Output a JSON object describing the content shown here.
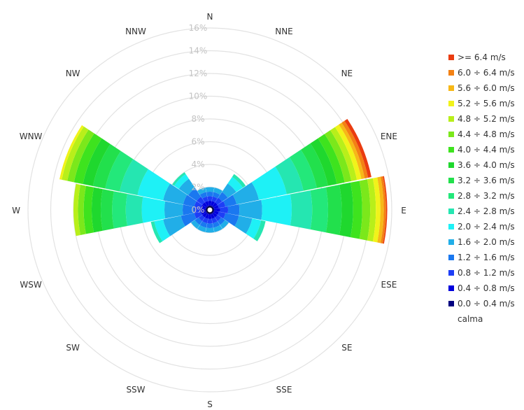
{
  "chart_data": {
    "type": "polar-bar",
    "directions": [
      "N",
      "NNE",
      "NE",
      "ENE",
      "E",
      "ESE",
      "SE",
      "SSE",
      "S",
      "SSW",
      "SW",
      "WSW",
      "W",
      "WNW",
      "NW",
      "NNW"
    ],
    "ring_labels": [
      "0%",
      "2%",
      "4%",
      "6%",
      "8%",
      "10%",
      "12%",
      "14%",
      "16%"
    ],
    "rlim": [
      0,
      16
    ],
    "totals": [
      2.0,
      2.0,
      3.8,
      14.5,
      15.6,
      5.0,
      2.0,
      2.0,
      2.0,
      2.0,
      2.0,
      5.3,
      12.0,
      13.5,
      4.0,
      2.0
    ],
    "legend_position": "right",
    "speed_classes": [
      {
        "label": "0.0 ÷ 0.4 m/s",
        "color": "#000080"
      },
      {
        "label": "0.4 ÷ 0.8 m/s",
        "color": "#0000dd"
      },
      {
        "label": "0.8 ÷ 1.2 m/s",
        "color": "#1e3ef6"
      },
      {
        "label": "1.2 ÷ 1.6 m/s",
        "color": "#1a78f0"
      },
      {
        "label": "1.6 ÷ 2.0 m/s",
        "color": "#21aee8"
      },
      {
        "label": "2.0 ÷ 2.4 m/s",
        "color": "#1ef1f6"
      },
      {
        "label": "2.4 ÷ 2.8 m/s",
        "color": "#25e6b1"
      },
      {
        "label": "2.8 ÷ 3.2 m/s",
        "color": "#23e87a"
      },
      {
        "label": "3.2 ÷ 3.6 m/s",
        "color": "#22e04c"
      },
      {
        "label": "3.6 ÷ 4.0 m/s",
        "color": "#1fd82e"
      },
      {
        "label": "4.0 ÷ 4.4 m/s",
        "color": "#3ee31e"
      },
      {
        "label": "4.4 ÷ 4.8 m/s",
        "color": "#7be81b"
      },
      {
        "label": "4.8 ÷ 5.2 m/s",
        "color": "#b8ef1a"
      },
      {
        "label": "5.2 ÷ 5.6 m/s",
        "color": "#f1f31a"
      },
      {
        "label": "5.6 ÷ 6.0 m/s",
        "color": "#f7b817"
      },
      {
        "label": "6.0 ÷ 6.4 m/s",
        "color": "#f38114"
      },
      {
        "label": ">= 6.4 m/s",
        "color": "#ea3c10"
      },
      {
        "label": "calma",
        "color": ""
      }
    ],
    "petals": [
      {
        "dir": "N",
        "bands": [
          0.4,
          0.4,
          0.4,
          0.4,
          0.4
        ]
      },
      {
        "dir": "NNE",
        "bands": [
          0.4,
          0.4,
          0.4,
          0.4,
          0.4
        ]
      },
      {
        "dir": "NE",
        "bands": [
          0.4,
          0.4,
          0.5,
          0.6,
          0.9,
          0.7,
          0.3
        ]
      },
      {
        "dir": "ENE",
        "bands": [
          0.4,
          0.4,
          0.6,
          1.0,
          2.0,
          2.5,
          1.5,
          1.2,
          1.0,
          0.8,
          0.7,
          0.6,
          0.5,
          0.4,
          0.3,
          0.3,
          0.3
        ]
      },
      {
        "dir": "E",
        "bands": [
          0.4,
          0.5,
          0.7,
          1.0,
          2.0,
          2.6,
          1.8,
          1.4,
          1.2,
          1.0,
          0.8,
          0.7,
          0.5,
          0.4,
          0.3,
          0.2,
          0.1
        ]
      },
      {
        "dir": "ESE",
        "bands": [
          0.4,
          0.4,
          0.6,
          1.2,
          1.2,
          0.8,
          0.4
        ]
      },
      {
        "dir": "SE",
        "bands": [
          0.4,
          0.4,
          0.4,
          0.4,
          0.4
        ]
      },
      {
        "dir": "SSE",
        "bands": [
          0.4,
          0.4,
          0.4,
          0.4,
          0.4
        ]
      },
      {
        "dir": "S",
        "bands": [
          0.4,
          0.4,
          0.4,
          0.4,
          0.4
        ]
      },
      {
        "dir": "SSW",
        "bands": [
          0.4,
          0.4,
          0.4,
          0.4,
          0.4
        ]
      },
      {
        "dir": "SW",
        "bands": [
          0.4,
          0.4,
          0.4,
          0.4,
          0.4
        ]
      },
      {
        "dir": "WSW",
        "bands": [
          0.4,
          0.4,
          0.6,
          1.2,
          1.6,
          0.8,
          0.3
        ]
      },
      {
        "dir": "W",
        "bands": [
          0.4,
          0.4,
          0.6,
          1.0,
          1.6,
          2.0,
          1.4,
          1.2,
          1.0,
          0.8,
          0.7,
          0.5,
          0.4
        ]
      },
      {
        "dir": "WNW",
        "bands": [
          0.4,
          0.4,
          0.6,
          1.0,
          1.8,
          2.3,
          1.6,
          1.3,
          1.1,
          0.9,
          0.8,
          0.6,
          0.5,
          0.2
        ]
      },
      {
        "dir": "NW",
        "bands": [
          0.4,
          0.4,
          0.6,
          0.9,
          1.0,
          0.5,
          0.2
        ]
      },
      {
        "dir": "NNW",
        "bands": [
          0.4,
          0.4,
          0.4,
          0.4,
          0.4
        ]
      }
    ]
  }
}
